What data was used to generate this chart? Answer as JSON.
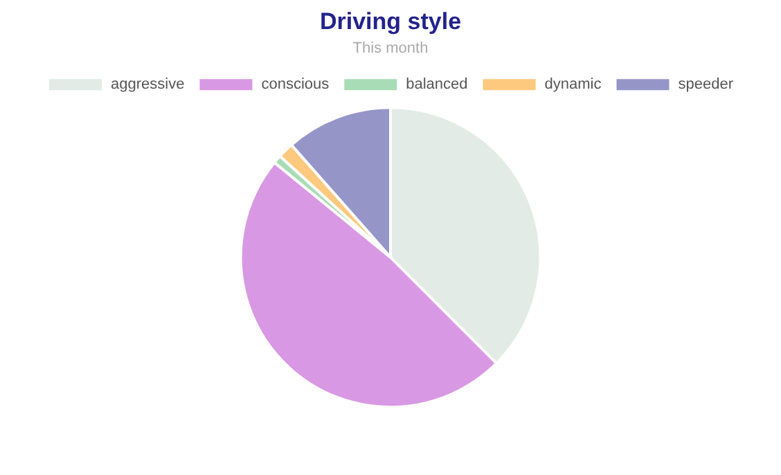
{
  "chart_data": {
    "type": "pie",
    "title": "Driving style",
    "subtitle": "This month",
    "categories": [
      "aggressive",
      "conscious",
      "balanced",
      "dynamic",
      "speeder"
    ],
    "values": [
      37.5,
      48.4,
      0.9,
      1.7,
      11.5
    ],
    "colors": [
      "#e2ebe6",
      "#d898e3",
      "#a8dcb6",
      "#fdc97e",
      "#9595c8"
    ],
    "legend": "top"
  }
}
